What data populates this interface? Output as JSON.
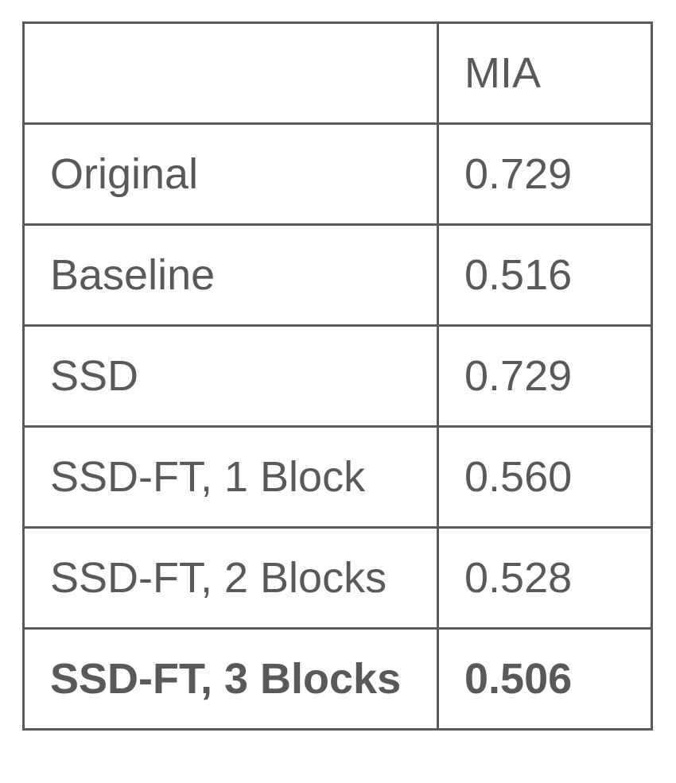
{
  "table": {
    "header": [
      "",
      "MIA"
    ],
    "rows": [
      {
        "method": "Original",
        "mia": "0.729",
        "bold": false
      },
      {
        "method": "Baseline",
        "mia": "0.516",
        "bold": false
      },
      {
        "method": "SSD",
        "mia": "0.729",
        "bold": false
      },
      {
        "method": "SSD-FT, 1 Block",
        "mia": "0.560",
        "bold": false
      },
      {
        "method": "SSD-FT, 2 Blocks",
        "mia": "0.528",
        "bold": false
      },
      {
        "method": "SSD-FT, 3 Blocks",
        "mia": "0.506",
        "bold": true
      }
    ]
  }
}
